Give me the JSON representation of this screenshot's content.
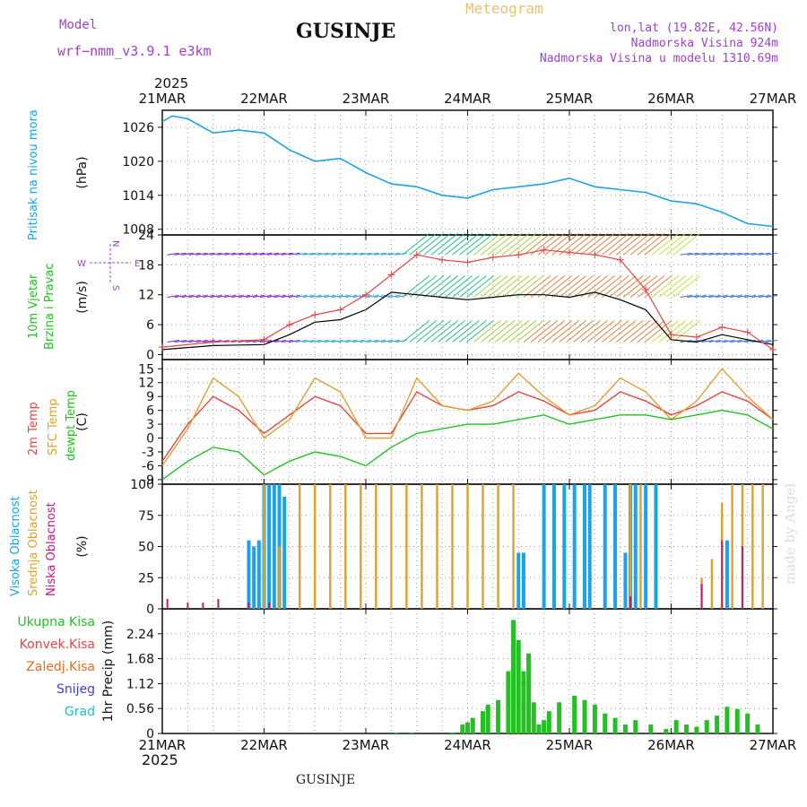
{
  "header": {
    "model_label": "Model",
    "model_name": "wrf−nmm_v3.9.1  e3km",
    "station": "GUSINJE",
    "product": "Meteogram",
    "lonlat": "lon,lat (19.82E, 42.56N)",
    "altitude": "Nadmorska Visina 924m",
    "model_altitude": "Nadmorska Visina u modelu 1310.69m",
    "year_top": "2025",
    "year_bottom": "2025",
    "footer_station": "GUSINJE",
    "watermark": "made by Angel"
  },
  "colors": {
    "pressure": "#1aa3e6",
    "wind_speed": "#e64545",
    "wind_mean": "#000000",
    "temp2m": "#e64545",
    "sfc": "#e0a030",
    "dewpt": "#22c022",
    "high_cloud": "#1aa3e6",
    "mid_cloud": "#e0a030",
    "low_cloud": "#c01a7a",
    "total_precip": "#22c022"
  },
  "chart_data": [
    {
      "type": "line",
      "panel": "pressure",
      "title": "Pritisak na nivou mora",
      "ylabel": "(hPa)",
      "ylim": [
        1007,
        1029
      ],
      "yticks": [
        1008,
        1014,
        1020,
        1026
      ],
      "x_days": [
        "21MAR",
        "22MAR",
        "23MAR",
        "24MAR",
        "25MAR",
        "26MAR",
        "27MAR"
      ],
      "x": [
        0,
        0.1,
        0.25,
        0.5,
        0.75,
        1.0,
        1.25,
        1.5,
        1.75,
        2.0,
        2.25,
        2.5,
        2.75,
        3.0,
        3.25,
        3.5,
        3.75,
        4.0,
        4.25,
        4.5,
        4.75,
        5.0,
        5.25,
        5.5,
        5.75,
        6.0
      ],
      "values": [
        1027,
        1028,
        1027.5,
        1025,
        1025.5,
        1025,
        1022,
        1020,
        1020.5,
        1018,
        1016,
        1015.5,
        1014,
        1013.5,
        1015,
        1015.5,
        1016,
        1017,
        1015.5,
        1015,
        1014.5,
        1013,
        1012.5,
        1011,
        1009,
        1008.5
      ]
    },
    {
      "type": "line",
      "panel": "wind",
      "title": "10m Vjetar Brzina i Pravac",
      "ylabel": "(m/s)",
      "ylim": [
        -1,
        24
      ],
      "yticks": [
        0,
        6,
        12,
        18,
        24
      ],
      "direction_legend": [
        "W",
        "E",
        "N",
        "S"
      ],
      "x": [
        0,
        0.5,
        1.0,
        1.25,
        1.5,
        1.75,
        2.0,
        2.25,
        2.5,
        2.75,
        3.0,
        3.25,
        3.5,
        3.75,
        4.0,
        4.25,
        4.5,
        4.75,
        5.0,
        5.25,
        5.5,
        5.75,
        6.0
      ],
      "series": [
        {
          "name": "wind speed",
          "values": [
            1.5,
            2.5,
            3.0,
            6.0,
            8.0,
            9.0,
            12.0,
            16.0,
            20.0,
            19.0,
            18.5,
            19.5,
            20.0,
            21.0,
            20.5,
            20.0,
            19.0,
            13.0,
            4.0,
            3.5,
            5.5,
            4.5,
            1.0
          ]
        },
        {
          "name": "mean wind",
          "values": [
            1.0,
            1.8,
            2.0,
            4.0,
            6.5,
            7.0,
            9.0,
            12.5,
            12.0,
            11.5,
            11.0,
            11.5,
            12.0,
            12.0,
            11.5,
            12.5,
            11.0,
            9.0,
            3.0,
            2.5,
            4.0,
            3.0,
            2.0
          ]
        }
      ]
    },
    {
      "type": "line",
      "panel": "temperature",
      "ylabel": "(C)",
      "ylim": [
        -10,
        17
      ],
      "yticks": [
        -9,
        -6,
        -3,
        0,
        3,
        6,
        9,
        12,
        15
      ],
      "x": [
        0,
        0.25,
        0.5,
        0.75,
        1.0,
        1.25,
        1.5,
        1.75,
        2.0,
        2.25,
        2.5,
        2.75,
        3.0,
        3.25,
        3.5,
        3.75,
        4.0,
        4.25,
        4.5,
        4.75,
        5.0,
        5.25,
        5.5,
        5.75,
        6.0
      ],
      "series": [
        {
          "name": "2m Temp",
          "values": [
            -5,
            3,
            9,
            6,
            1,
            5,
            9,
            7,
            1,
            1,
            10,
            7,
            6,
            7,
            10,
            8,
            5,
            6,
            10,
            8,
            5,
            7,
            10,
            8,
            4
          ]
        },
        {
          "name": "SFC Temp",
          "values": [
            -6,
            2,
            13,
            9,
            0,
            4,
            13,
            10,
            0,
            0,
            13,
            7,
            6,
            8,
            14,
            9,
            5,
            7,
            13,
            10,
            4,
            8,
            15,
            9,
            4
          ]
        },
        {
          "name": "dewpt Temp",
          "values": [
            -9,
            -5,
            -2,
            -3,
            -8,
            -5,
            -3,
            -4,
            -6,
            -2,
            1,
            2,
            3,
            3,
            4,
            5,
            3,
            4,
            5,
            5,
            4,
            5,
            6,
            5,
            2
          ]
        }
      ]
    },
    {
      "type": "bar",
      "panel": "cloud",
      "ylabel": "(%)",
      "ylim": [
        0,
        100
      ],
      "yticks": [
        0,
        25,
        50,
        75,
        100
      ],
      "legend": [
        "Visoka Oblacnost",
        "Srednja Oblacnost",
        "Niska Oblacnost"
      ],
      "series": [
        {
          "name": "Visoka Oblacnost",
          "x": [
            0.85,
            0.9,
            0.95,
            1.0,
            1.05,
            1.1,
            1.15,
            1.2,
            3.5,
            3.55,
            3.75,
            3.85,
            3.95,
            4.05,
            4.15,
            4.2,
            4.35,
            4.45,
            4.55,
            4.6,
            4.65,
            4.75,
            4.85,
            5.55
          ],
          "values": [
            55,
            50,
            55,
            100,
            100,
            100,
            100,
            90,
            45,
            45,
            100,
            100,
            100,
            100,
            100,
            100,
            100,
            100,
            45,
            100,
            100,
            100,
            100,
            55
          ]
        },
        {
          "name": "Srednja Oblacnost",
          "x": [
            1.0,
            1.15,
            1.35,
            1.5,
            1.65,
            1.8,
            1.95,
            2.1,
            2.25,
            2.4,
            2.55,
            2.7,
            2.85,
            3.0,
            3.15,
            3.3,
            3.45,
            4.6,
            4.7,
            5.3,
            5.4,
            5.5,
            5.6,
            5.7,
            5.8,
            5.9
          ],
          "values": [
            100,
            50,
            100,
            100,
            100,
            100,
            100,
            100,
            100,
            100,
            100,
            100,
            100,
            100,
            100,
            100,
            100,
            100,
            100,
            25,
            40,
            85,
            100,
            100,
            100,
            100
          ]
        },
        {
          "name": "Niska Oblacnost",
          "x": [
            0.05,
            0.25,
            0.4,
            0.55,
            0.85,
            1.05,
            4.6,
            5.3,
            5.5,
            5.7
          ],
          "values": [
            8,
            5,
            5,
            8,
            5,
            5,
            10,
            20,
            55,
            50
          ]
        }
      ]
    },
    {
      "type": "bar",
      "panel": "precipitation",
      "ylabel": "1hr Precip (mm)",
      "ylim": [
        0,
        2.8
      ],
      "yticks": [
        0,
        0.56,
        1.12,
        1.68,
        2.24
      ],
      "legend": [
        "Ukupna Kisa",
        "Konvek.Kisa",
        "Zaledj.Kisa",
        "Snijeg",
        "Grad"
      ],
      "x": [
        2.3,
        2.45,
        2.85,
        2.95,
        3.0,
        3.05,
        3.15,
        3.2,
        3.3,
        3.4,
        3.45,
        3.5,
        3.55,
        3.6,
        3.65,
        3.7,
        3.75,
        3.8,
        3.9,
        4.05,
        4.15,
        4.25,
        4.35,
        4.45,
        4.55,
        4.65,
        4.8,
        4.95,
        5.05,
        5.15,
        5.25,
        5.35,
        5.45,
        5.55,
        5.65,
        5.75,
        5.85
      ],
      "values": [
        0.02,
        0.02,
        0.02,
        0.2,
        0.25,
        0.35,
        0.5,
        0.65,
        0.75,
        1.4,
        2.55,
        2.1,
        1.4,
        1.8,
        0.7,
        0.2,
        0.3,
        0.5,
        0.7,
        0.85,
        0.75,
        0.65,
        0.45,
        0.35,
        0.2,
        0.3,
        0.2,
        0.1,
        0.3,
        0.2,
        0.15,
        0.3,
        0.4,
        0.6,
        0.55,
        0.45,
        0.2
      ]
    }
  ],
  "panel_labels": {
    "pressure": "Pritisak na nivou mora",
    "wind": [
      "10m Vjetar",
      "Brzina i Pravac"
    ],
    "temp": [
      "2m Temp",
      "SFC Temp",
      "dewpt Temp"
    ],
    "cloud": [
      "Visoka Oblacnost",
      "Srednja Oblacnost",
      "Niska Oblacnost"
    ],
    "precip_legend": [
      "Ukupna Kisa",
      "Konvek.Kisa",
      "Zaledj.Kisa",
      "Snijeg",
      "Grad"
    ]
  }
}
